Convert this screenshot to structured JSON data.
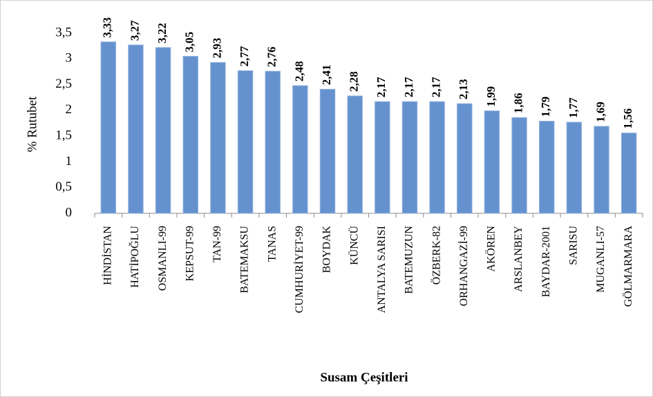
{
  "chart_data": {
    "type": "bar",
    "y_label": "% Rutubet",
    "x_label": "Susam Çeşitleri",
    "categories": [
      "HİNDİSTAN",
      "HATİPOĞLU",
      "OSMANLI-99",
      "KEPSUT-99",
      "TAN-99",
      "BATEMAKSU",
      "TANAS",
      "CUMHURİYET-99",
      "BOYDAK",
      "KÜNCÜ",
      "ANTALYA SARISI",
      "BATEMUZUN",
      "ÖZBERK-82",
      "ORHANGAZİ-99",
      "AKÖREN",
      "ARSLANBEY",
      "BAYDAR-2001",
      "SARISU",
      "MUGANLI-57",
      "GÖLMARMARA"
    ],
    "values": [
      3.33,
      3.27,
      3.22,
      3.05,
      2.93,
      2.77,
      2.76,
      2.48,
      2.41,
      2.28,
      2.17,
      2.17,
      2.17,
      2.13,
      1.99,
      1.86,
      1.79,
      1.77,
      1.69,
      1.56
    ],
    "value_labels": [
      "3,33",
      "3,27",
      "3,22",
      "3,05",
      "2,93",
      "2,77",
      "2,76",
      "2,48",
      "2,41",
      "2,28",
      "2,17",
      "2,17",
      "2,17",
      "2,13",
      "1,99",
      "1,86",
      "1,79",
      "1,77",
      "1,69",
      "1,56"
    ],
    "color": "#6592cf",
    "ylim": [
      0,
      3.5
    ],
    "yticks": [
      0,
      {
        "value": 0.5,
        "label": "0,5"
      },
      1,
      {
        "value": 1.5,
        "label": "1,5"
      },
      2,
      {
        "value": 2.5,
        "label": "2,5"
      },
      3,
      {
        "value": 3.5,
        "label": "3,5"
      }
    ],
    "grid": false
  }
}
